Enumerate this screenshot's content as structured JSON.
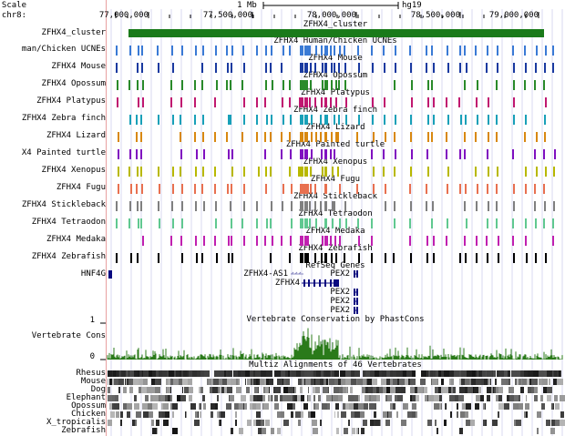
{
  "ruler": {
    "scale_label": "Scale",
    "chrom_label": "chr8:",
    "scale_bar_label": "1 Mb",
    "assembly": "hg19",
    "ticks": [
      "77,000,000",
      "77,500,000",
      "78,000,000",
      "78,500,000",
      "79,000,000"
    ]
  },
  "cluster": {
    "label": "ZFHX4_cluster",
    "title": "ZFHX4_cluster",
    "color": "#1a7a1a"
  },
  "ucne_tracks": [
    {
      "label": "man/Chicken UCNEs",
      "title": "ZFHX4 Human/Chicken UCNEs",
      "color": "#3a7ad5"
    },
    {
      "label": "ZFHX4 Mouse",
      "title": "ZFHX4 Mouse",
      "color": "#1a3aa0"
    },
    {
      "label": "ZFHX4 Opossum",
      "title": "ZFHX4 Opossum",
      "color": "#2a8a2a"
    },
    {
      "label": "ZFHX4 Platypus",
      "title": "ZFHX4 Platypus",
      "color": "#c01870"
    },
    {
      "label": "ZFHX4 Zebra finch",
      "title": "ZFHX4 Zebra finch",
      "color": "#18a0b8"
    },
    {
      "label": "ZFHX4 Lizard",
      "title": "ZFHX4 Lizard",
      "color": "#d88810"
    },
    {
      "label": "X4 Painted turtle",
      "title": "ZFHX4 Painted turtle",
      "color": "#8010c0"
    },
    {
      "label": "ZFHX4 Xenopus",
      "title": "ZFHX4 Xenopus",
      "color": "#b8b800"
    },
    {
      "label": "ZFHX4 Fugu",
      "title": "ZFHX4 Fugu",
      "color": "#e87050"
    },
    {
      "label": "ZFHX4 Stickleback",
      "title": "ZFHX4 Stickleback",
      "color": "#808080"
    },
    {
      "label": "ZFHX4 Tetraodon",
      "title": "ZFHX4 Tetraodon",
      "color": "#60c890"
    },
    {
      "label": "ZFHX4 Medaka",
      "title": "ZFHX4 Medaka",
      "color": "#c020b0"
    },
    {
      "label": "ZFHX4 Zebrafish",
      "title": "ZFHX4 Zebrafish",
      "color": "#000000"
    }
  ],
  "refseq": {
    "label": "HNF4G",
    "title": "RefSeq Genes",
    "genes": [
      "ZFHX4-AS1",
      "ZFHX4",
      "PEX2",
      "PEX2",
      "PEX2",
      "PEX2"
    ],
    "gene_color": "#0a0a80",
    "antisense_color": "#8888c0"
  },
  "conservation": {
    "label": "Vertebrate Cons",
    "title": "Vertebrate Conservation by PhastCons",
    "ymax": "1",
    "ymin": "0",
    "color": "#2a7a1a"
  },
  "multiz": {
    "title": "Multiz Alignments of 46 Vertebrates",
    "species": [
      "Rhesus",
      "Mouse",
      "Dog",
      "Elephant",
      "Opossum",
      "Chicken",
      "X_tropicalis",
      "Zebrafish"
    ]
  }
}
